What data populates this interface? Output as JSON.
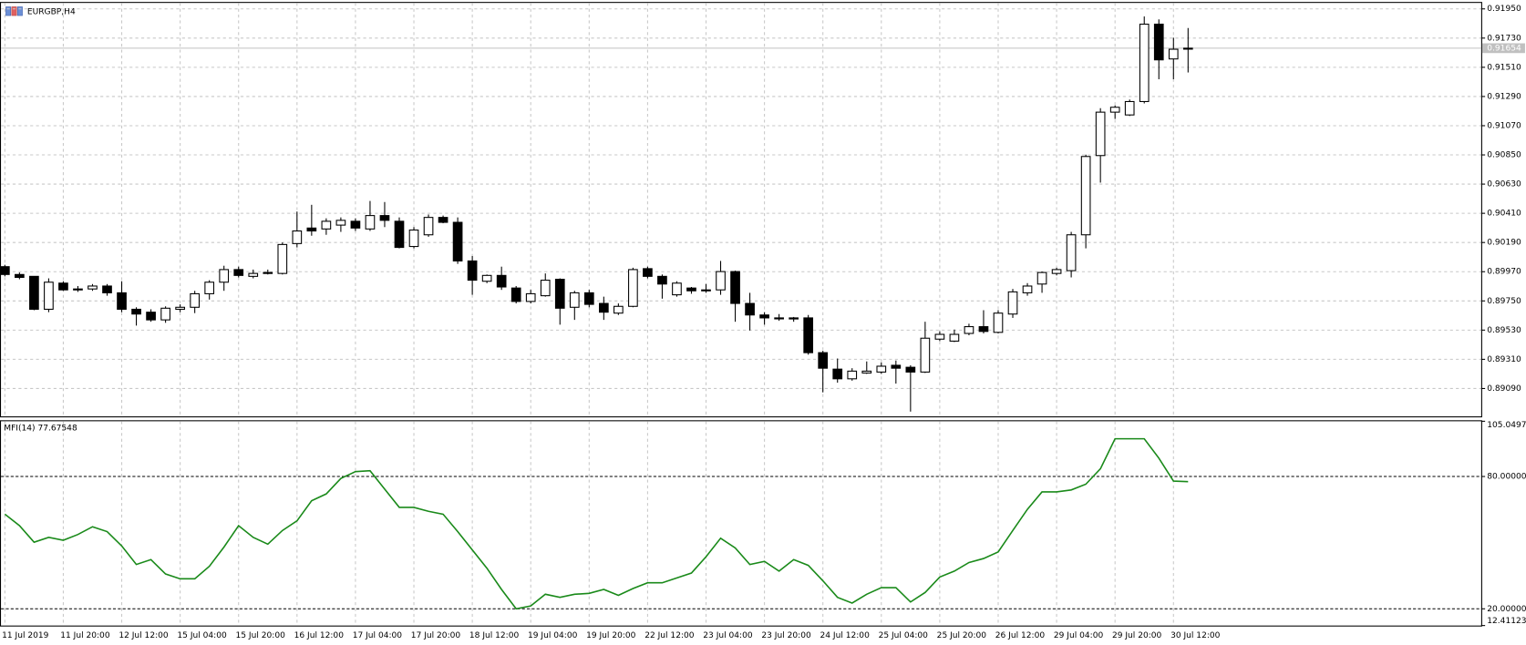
{
  "chart_data": [
    {
      "type": "candlestick",
      "title": "EURGBP,H4",
      "up_color": "#ffffff",
      "down_color": "#000000",
      "ylim": [
        0.8888,
        0.91995
      ],
      "xgrid": true,
      "ygrid": true,
      "yticks": [
        {
          "value": 0.9195,
          "label": "0.91950"
        },
        {
          "value": 0.9173,
          "label": "0.91730"
        },
        {
          "value": 0.9151,
          "label": "0.91510"
        },
        {
          "value": 0.9129,
          "label": "0.91290"
        },
        {
          "value": 0.9107,
          "label": "0.91070"
        },
        {
          "value": 0.9085,
          "label": "0.90850"
        },
        {
          "value": 0.9063,
          "label": "0.90630"
        },
        {
          "value": 0.9041,
          "label": "0.90410"
        },
        {
          "value": 0.9019,
          "label": "0.90190"
        },
        {
          "value": 0.8997,
          "label": "0.89970"
        },
        {
          "value": 0.8975,
          "label": "0.89750"
        },
        {
          "value": 0.8953,
          "label": "0.89530"
        },
        {
          "value": 0.8931,
          "label": "0.89310"
        },
        {
          "value": 0.8909,
          "label": "0.89090"
        }
      ],
      "current_price": 0.91654,
      "open": [
        0.90008,
        0.89949,
        0.89935,
        0.89687,
        0.89884,
        0.8984,
        0.8984,
        0.89862,
        0.89811,
        0.89687,
        0.89665,
        0.89607,
        0.89687,
        0.89702,
        0.89804,
        0.89891,
        0.89986,
        0.89935,
        0.89957,
        0.89957,
        0.90182,
        0.90299,
        0.90292,
        0.90321,
        0.9035,
        0.90292,
        0.90393,
        0.9035,
        0.9016,
        0.90248,
        0.90379,
        0.90342,
        0.90051,
        0.89898,
        0.89942,
        0.89847,
        0.89746,
        0.89789,
        0.89913,
        0.89702,
        0.89811,
        0.89731,
        0.89658,
        0.89709,
        0.89993,
        0.89935,
        0.89796,
        0.89847,
        0.89833,
        0.89833,
        0.89971,
        0.89731,
        0.89644,
        0.89622,
        0.89622,
        0.89622,
        0.8936,
        0.89236,
        0.89163,
        0.89207,
        0.89214,
        0.89265,
        0.8925,
        0.89214,
        0.89462,
        0.89447,
        0.89505,
        0.89556,
        0.89513,
        0.89651,
        0.89811,
        0.89877,
        0.89957,
        0.89978,
        0.90248,
        0.90845,
        0.91172,
        0.91151,
        0.91252,
        0.91835,
        0.91573,
        0.9165
      ],
      "high": [
        0.90022,
        0.89964,
        0.89935,
        0.8992,
        0.89898,
        0.89862,
        0.89877,
        0.89877,
        0.89898,
        0.89702,
        0.89687,
        0.89709,
        0.89724,
        0.89826,
        0.89906,
        0.90015,
        0.90008,
        0.89986,
        0.89986,
        0.9019,
        0.90423,
        0.90474,
        0.90372,
        0.90379,
        0.90372,
        0.90503,
        0.90495,
        0.90379,
        0.90306,
        0.90401,
        0.90393,
        0.90379,
        0.90088,
        0.89949,
        0.90008,
        0.89862,
        0.89833,
        0.89957,
        0.8992,
        0.89826,
        0.89833,
        0.89782,
        0.89731,
        0.9,
        0.90008,
        0.89949,
        0.89898,
        0.89855,
        0.89877,
        0.90051,
        0.89978,
        0.89811,
        0.89665,
        0.89651,
        0.89629,
        0.89644,
        0.89374,
        0.89316,
        0.89243,
        0.89294,
        0.89287,
        0.89301,
        0.89265,
        0.89593,
        0.8952,
        0.89534,
        0.89578,
        0.8968,
        0.8968,
        0.8984,
        0.89884,
        0.89971,
        0.9,
        0.9027,
        0.90852,
        0.91202,
        0.91223,
        0.91267,
        0.91893,
        0.91871,
        0.91733,
        0.91806
      ],
      "low": [
        0.89935,
        0.89913,
        0.8968,
        0.89665,
        0.89826,
        0.89818,
        0.89826,
        0.89789,
        0.89665,
        0.89564,
        0.89593,
        0.89585,
        0.89665,
        0.89658,
        0.8976,
        0.89826,
        0.89927,
        0.8992,
        0.89949,
        0.89949,
        0.90153,
        0.90241,
        0.90248,
        0.9027,
        0.90277,
        0.90277,
        0.90306,
        0.90146,
        0.90146,
        0.90233,
        0.90335,
        0.90029,
        0.89796,
        0.89884,
        0.89833,
        0.89731,
        0.89731,
        0.89782,
        0.89571,
        0.89607,
        0.89702,
        0.89607,
        0.89644,
        0.89702,
        0.8992,
        0.89767,
        0.89782,
        0.89804,
        0.89811,
        0.89796,
        0.89593,
        0.89527,
        0.89571,
        0.896,
        0.89593,
        0.89345,
        0.89061,
        0.89134,
        0.89149,
        0.892,
        0.892,
        0.89127,
        0.88916,
        0.89207,
        0.89447,
        0.8944,
        0.89491,
        0.89505,
        0.89505,
        0.89622,
        0.89789,
        0.89811,
        0.89942,
        0.89927,
        0.90146,
        0.90641,
        0.91121,
        0.91143,
        0.91238,
        0.9142,
        0.9142,
        0.91471
      ],
      "close": [
        0.89949,
        0.89927,
        0.89687,
        0.89891,
        0.89833,
        0.89833,
        0.89862,
        0.89811,
        0.89687,
        0.89651,
        0.89607,
        0.89695,
        0.89702,
        0.89804,
        0.89891,
        0.89986,
        0.89942,
        0.89957,
        0.89964,
        0.90175,
        0.90277,
        0.90277,
        0.9035,
        0.90357,
        0.90299,
        0.90393,
        0.90357,
        0.90153,
        0.90284,
        0.90379,
        0.90342,
        0.90051,
        0.89906,
        0.89942,
        0.89855,
        0.89746,
        0.89804,
        0.89906,
        0.89695,
        0.89811,
        0.89724,
        0.89665,
        0.89709,
        0.89986,
        0.89935,
        0.89877,
        0.89884,
        0.89826,
        0.8983,
        0.89971,
        0.89731,
        0.89644,
        0.89622,
        0.89618,
        0.89614,
        0.8936,
        0.89243,
        0.89163,
        0.89221,
        0.89221,
        0.89258,
        0.89243,
        0.89214,
        0.89469,
        0.89498,
        0.89498,
        0.89556,
        0.8952,
        0.89658,
        0.89818,
        0.89862,
        0.89964,
        0.89986,
        0.90248,
        0.90838,
        0.91172,
        0.91209,
        0.91252,
        0.91835,
        0.91566,
        0.91646,
        0.91654
      ]
    },
    {
      "type": "line",
      "title": "MFI(14) 77.67548",
      "color": "#1a8a1a",
      "ylim": [
        12.41123,
        105.04973
      ],
      "xgrid": true,
      "ygrid": false,
      "yticks": [
        105.04973,
        {
          "value": 80,
          "label": "80.00000"
        },
        {
          "value": 20,
          "label": "20.00000"
        },
        12.41123
      ],
      "levels": [
        80,
        20
      ],
      "categories": [
        "11 Jul 2019",
        null,
        null,
        null,
        "11 Jul 20:00",
        null,
        null,
        null,
        "12 Jul 12:00",
        null,
        null,
        null,
        "15 Jul 04:00",
        null,
        null,
        null,
        "15 Jul 20:00",
        null,
        null,
        null,
        "16 Jul 12:00",
        null,
        null,
        null,
        "17 Jul 04:00",
        null,
        null,
        null,
        "17 Jul 20:00",
        null,
        null,
        null,
        "18 Jul 12:00",
        null,
        null,
        null,
        "19 Jul 04:00",
        null,
        null,
        null,
        "19 Jul 20:00",
        null,
        null,
        null,
        "22 Jul 12:00",
        null,
        null,
        null,
        "23 Jul 04:00",
        null,
        null,
        null,
        "23 Jul 20:00",
        null,
        null,
        null,
        "24 Jul 12:00",
        null,
        null,
        null,
        "25 Jul 04:00",
        null,
        null,
        null,
        "25 Jul 20:00",
        null,
        null,
        null,
        "26 Jul 12:00",
        null,
        null,
        null,
        "29 Jul 04:00",
        null,
        null,
        null,
        "29 Jul 20:00",
        null,
        null,
        null,
        "30 Jul 12:00",
        null
      ],
      "values": [
        62.9,
        57.7,
        50.2,
        52.4,
        51.1,
        53.7,
        57.2,
        55.0,
        48.5,
        40.1,
        42.3,
        35.8,
        33.6,
        33.6,
        39.3,
        48.0,
        57.7,
        52.4,
        49.3,
        55.5,
        59.9,
        69.0,
        72.1,
        79.1,
        82.2,
        82.6,
        74.3,
        66.0,
        66.0,
        64.2,
        62.9,
        55.0,
        46.7,
        38.4,
        28.8,
        20.0,
        21.3,
        26.6,
        25.2,
        26.6,
        27.0,
        28.8,
        26.1,
        29.2,
        31.8,
        31.8,
        34.0,
        36.2,
        43.6,
        52.0,
        47.6,
        40.1,
        41.5,
        37.1,
        42.3,
        39.7,
        32.7,
        25.2,
        22.6,
        26.6,
        29.6,
        29.6,
        23.1,
        27.4,
        34.4,
        37.1,
        41.0,
        42.8,
        45.8,
        55.5,
        65.1,
        73.0,
        73.0,
        73.9,
        76.5,
        83.5,
        97.1,
        97.1,
        97.1,
        88.3,
        77.9,
        77.67548
      ]
    }
  ]
}
